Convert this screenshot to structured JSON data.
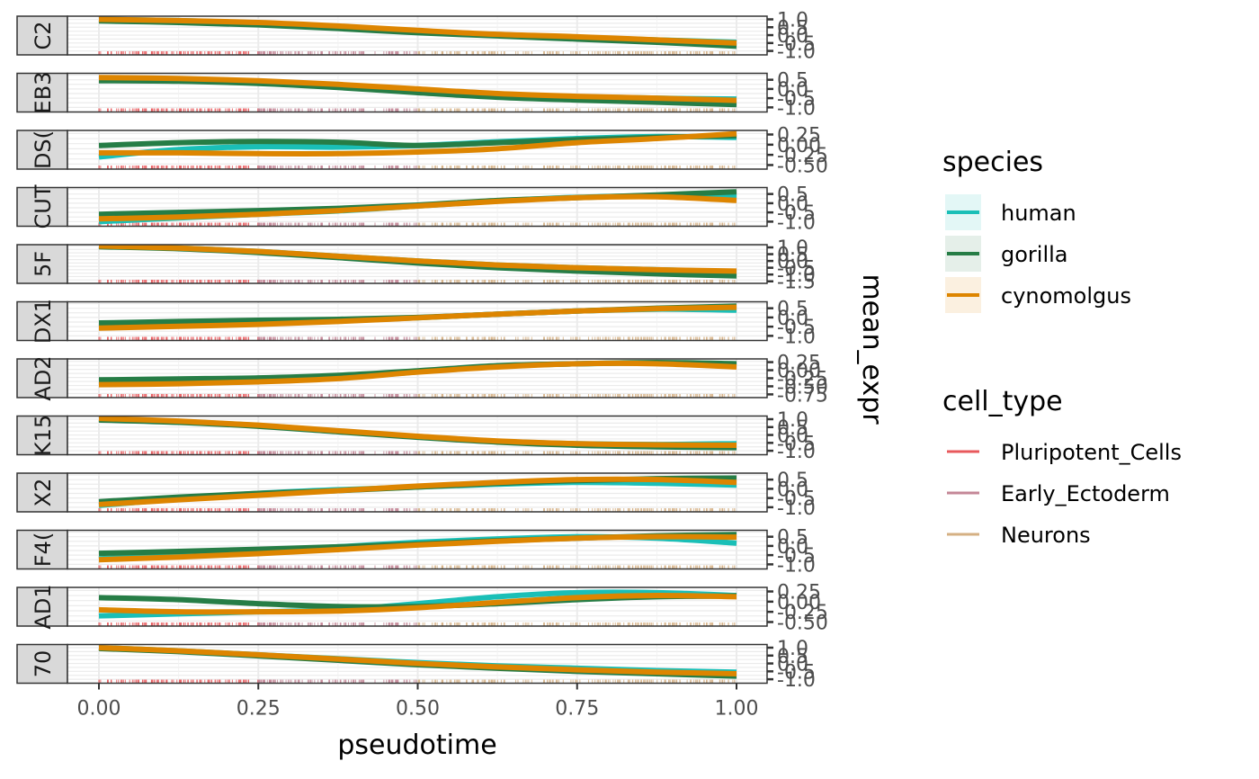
{
  "chart_data": {
    "type": "line",
    "title": "",
    "xlabel": "pseudotime",
    "ylabel": "mean_expr",
    "xlim": [
      -0.1,
      1.05
    ],
    "x_ticks": [
      0.0,
      0.25,
      0.5,
      0.75,
      1.0
    ],
    "x_tick_labels": [
      "0.00",
      "0.25",
      "0.50",
      "0.75",
      "1.00"
    ],
    "grid": true,
    "facet_direction": "rows",
    "species_colors": {
      "human": "#1abfb7",
      "gorilla": "#267d46",
      "cynomolgus": "#dd8500"
    },
    "cell_type_colors": {
      "Pluripotent_Cells": "#e8595c",
      "Early_Ectoderm": "#c48797",
      "Neurons": "#d5b083"
    },
    "x": [
      0.0,
      0.125,
      0.25,
      0.375,
      0.5,
      0.625,
      0.75,
      0.875,
      1.0
    ],
    "panels": [
      {
        "strip": "C2",
        "ylim": [
          -1.25,
          1.2
        ],
        "y_ticks": [
          1.0,
          0.5,
          0.0,
          -0.5,
          -1.0
        ],
        "y_tick_labels": [
          "1.0",
          "0.5",
          "0.0",
          "-0.5",
          "-1.0"
        ],
        "series": [
          {
            "name": "human",
            "values": [
              1.0,
              0.92,
              0.78,
              0.55,
              0.25,
              0.0,
              -0.15,
              -0.3,
              -0.45
            ]
          },
          {
            "name": "gorilla",
            "values": [
              0.9,
              0.8,
              0.65,
              0.42,
              0.15,
              -0.05,
              -0.25,
              -0.45,
              -0.7
            ]
          },
          {
            "name": "cynomolgus",
            "values": [
              1.0,
              0.92,
              0.8,
              0.58,
              0.3,
              0.05,
              -0.1,
              -0.3,
              -0.5
            ]
          }
        ]
      },
      {
        "strip": "EB3",
        "ylim": [
          -1.25,
          0.85
        ],
        "y_ticks": [
          0.5,
          0.0,
          -0.5,
          -1.0
        ],
        "y_tick_labels": [
          "0.5",
          "0.0",
          "-0.5",
          "-1.0"
        ],
        "series": [
          {
            "name": "human",
            "values": [
              0.6,
              0.55,
              0.42,
              0.2,
              -0.05,
              -0.3,
              -0.42,
              -0.5,
              -0.55
            ]
          },
          {
            "name": "gorilla",
            "values": [
              0.45,
              0.42,
              0.3,
              0.08,
              -0.2,
              -0.45,
              -0.6,
              -0.72,
              -0.85
            ]
          },
          {
            "name": "cynomolgus",
            "values": [
              0.62,
              0.57,
              0.45,
              0.25,
              0.0,
              -0.25,
              -0.4,
              -0.5,
              -0.62
            ]
          }
        ]
      },
      {
        "strip": "DS(",
        "ylim": [
          -0.6,
          0.35
        ],
        "y_ticks": [
          0.25,
          0.0,
          -0.25,
          -0.5
        ],
        "y_tick_labels": [
          "0.25",
          "0.00",
          "-0.25",
          "-0.50"
        ],
        "series": [
          {
            "name": "human",
            "values": [
              -0.3,
              -0.12,
              -0.05,
              -0.06,
              -0.02,
              0.07,
              0.15,
              0.2,
              0.18
            ]
          },
          {
            "name": "gorilla",
            "values": [
              -0.02,
              0.05,
              0.08,
              0.06,
              -0.02,
              0.05,
              0.12,
              0.18,
              0.22
            ]
          },
          {
            "name": "cynomolgus",
            "values": [
              -0.2,
              -0.2,
              -0.22,
              -0.22,
              -0.18,
              -0.1,
              0.05,
              0.15,
              0.27
            ]
          }
        ]
      },
      {
        "strip": "CUT",
        "ylim": [
          -1.25,
          0.85
        ],
        "y_ticks": [
          0.5,
          0.0,
          -0.5,
          -1.0
        ],
        "y_tick_labels": [
          "0.5",
          "0.0",
          "-0.5",
          "-1.0"
        ],
        "series": [
          {
            "name": "human",
            "values": [
              -1.0,
              -0.8,
              -0.6,
              -0.42,
              -0.15,
              0.12,
              0.32,
              0.4,
              0.35
            ]
          },
          {
            "name": "gorilla",
            "values": [
              -0.6,
              -0.5,
              -0.4,
              -0.28,
              -0.1,
              0.15,
              0.3,
              0.45,
              0.62
            ]
          },
          {
            "name": "cynomolgus",
            "values": [
              -0.85,
              -0.75,
              -0.6,
              -0.4,
              -0.15,
              0.1,
              0.3,
              0.35,
              0.15
            ]
          }
        ]
      },
      {
        "strip": "5F",
        "ylim": [
          -1.65,
          1.2
        ],
        "y_ticks": [
          1.0,
          0.5,
          0.0,
          -0.5,
          -1.0,
          -1.5
        ],
        "y_tick_labels": [
          "1.0",
          "0.5",
          "0.0",
          "-0.5",
          "-1.0",
          "-1.5"
        ],
        "series": [
          {
            "name": "human",
            "values": [
              1.1,
              0.95,
              0.7,
              0.35,
              0.0,
              -0.3,
              -0.5,
              -0.65,
              -0.8
            ]
          },
          {
            "name": "gorilla",
            "values": [
              1.05,
              0.9,
              0.62,
              0.25,
              -0.15,
              -0.5,
              -0.75,
              -0.95,
              -1.1
            ]
          },
          {
            "name": "cynomolgus",
            "values": [
              1.1,
              0.95,
              0.7,
              0.35,
              0.0,
              -0.3,
              -0.5,
              -0.65,
              -0.75
            ]
          }
        ]
      },
      {
        "strip": "DX1",
        "ylim": [
          -1.25,
          0.85
        ],
        "y_ticks": [
          0.5,
          0.0,
          -0.5,
          -1.0
        ],
        "y_tick_labels": [
          "0.5",
          "0.0",
          "-0.5",
          "-1.0"
        ],
        "series": [
          {
            "name": "human",
            "values": [
              -0.55,
              -0.45,
              -0.35,
              -0.2,
              -0.02,
              0.18,
              0.35,
              0.45,
              0.4
            ]
          },
          {
            "name": "gorilla",
            "values": [
              -0.3,
              -0.22,
              -0.15,
              -0.1,
              0.0,
              0.18,
              0.35,
              0.5,
              0.62
            ]
          },
          {
            "name": "cynomolgus",
            "values": [
              -0.58,
              -0.48,
              -0.38,
              -0.22,
              -0.02,
              0.18,
              0.35,
              0.48,
              0.55
            ]
          }
        ]
      },
      {
        "strip": "AD2",
        "ylim": [
          -0.85,
          0.35
        ],
        "y_ticks": [
          0.25,
          0.0,
          -0.25,
          -0.5,
          -0.75
        ],
        "y_tick_labels": [
          "0.25",
          "0.00",
          "-0.25",
          "-0.50",
          "-0.75"
        ],
        "series": [
          {
            "name": "human",
            "values": [
              -0.42,
              -0.4,
              -0.35,
              -0.25,
              -0.05,
              0.12,
              0.2,
              0.22,
              0.15
            ]
          },
          {
            "name": "gorilla",
            "values": [
              -0.3,
              -0.27,
              -0.24,
              -0.16,
              -0.02,
              0.14,
              0.2,
              0.24,
              0.2
            ]
          },
          {
            "name": "cynomolgus",
            "values": [
              -0.45,
              -0.42,
              -0.36,
              -0.26,
              -0.06,
              0.1,
              0.2,
              0.2,
              0.1
            ]
          }
        ]
      },
      {
        "strip": "K15",
        "ylim": [
          -1.25,
          1.2
        ],
        "y_ticks": [
          1.0,
          0.5,
          0.0,
          -0.5,
          -1.0
        ],
        "y_tick_labels": [
          "1.0",
          "0.5",
          "0.0",
          "-0.5",
          "-1.0"
        ],
        "series": [
          {
            "name": "human",
            "values": [
              1.0,
              0.85,
              0.6,
              0.25,
              -0.1,
              -0.4,
              -0.55,
              -0.6,
              -0.55
            ]
          },
          {
            "name": "gorilla",
            "values": [
              0.95,
              0.8,
              0.55,
              0.2,
              -0.15,
              -0.45,
              -0.65,
              -0.75,
              -0.8
            ]
          },
          {
            "name": "cynomolgus",
            "values": [
              1.05,
              0.88,
              0.62,
              0.27,
              -0.08,
              -0.38,
              -0.55,
              -0.62,
              -0.65
            ]
          }
        ]
      },
      {
        "strip": "X2",
        "ylim": [
          -1.25,
          0.85
        ],
        "y_ticks": [
          0.5,
          0.0,
          -0.5,
          -1.0
        ],
        "y_tick_labels": [
          "0.5",
          "0.0",
          "-0.5",
          "-1.0"
        ],
        "series": [
          {
            "name": "human",
            "values": [
              -0.9,
              -0.55,
              -0.25,
              -0.05,
              0.1,
              0.25,
              0.35,
              0.3,
              0.2
            ]
          },
          {
            "name": "gorilla",
            "values": [
              -0.7,
              -0.45,
              -0.25,
              -0.1,
              0.1,
              0.3,
              0.45,
              0.55,
              0.58
            ]
          },
          {
            "name": "cynomolgus",
            "values": [
              -0.85,
              -0.6,
              -0.35,
              -0.1,
              0.15,
              0.35,
              0.5,
              0.5,
              0.35
            ]
          }
        ]
      },
      {
        "strip": "F4(",
        "ylim": [
          -1.25,
          0.85
        ],
        "y_ticks": [
          0.5,
          0.0,
          -0.5,
          -1.0
        ],
        "y_tick_labels": [
          "0.5",
          "0.0",
          "-0.5",
          "-1.0"
        ],
        "series": [
          {
            "name": "human",
            "values": [
              -0.7,
              -0.5,
              -0.3,
              -0.05,
              0.2,
              0.38,
              0.5,
              0.42,
              0.15
            ]
          },
          {
            "name": "gorilla",
            "values": [
              -0.4,
              -0.3,
              -0.18,
              -0.05,
              0.1,
              0.28,
              0.42,
              0.55,
              0.62
            ]
          },
          {
            "name": "cynomolgus",
            "values": [
              -0.75,
              -0.6,
              -0.42,
              -0.2,
              0.05,
              0.25,
              0.42,
              0.5,
              0.48
            ]
          }
        ]
      },
      {
        "strip": "AD1",
        "ylim": [
          -0.6,
          0.35
        ],
        "y_ticks": [
          0.25,
          0.0,
          -0.25,
          -0.5
        ],
        "y_tick_labels": [
          "0.25",
          "0.00",
          "-0.25",
          "-0.50"
        ],
        "series": [
          {
            "name": "human",
            "values": [
              -0.35,
              -0.3,
              -0.25,
              -0.2,
              -0.05,
              0.12,
              0.22,
              0.22,
              0.15
            ]
          },
          {
            "name": "gorilla",
            "values": [
              0.1,
              0.05,
              -0.05,
              -0.12,
              -0.12,
              -0.05,
              0.05,
              0.12,
              0.14
            ]
          },
          {
            "name": "cynomolgus",
            "values": [
              -0.2,
              -0.25,
              -0.25,
              -0.23,
              -0.15,
              -0.02,
              0.1,
              0.15,
              0.12
            ]
          }
        ]
      },
      {
        "strip": "70",
        "ylim": [
          -1.25,
          1.2
        ],
        "y_ticks": [
          1.0,
          0.5,
          0.0,
          -0.5,
          -1.0
        ],
        "y_tick_labels": [
          "1.0",
          "0.5",
          "0.0",
          "-0.5",
          "-1.0"
        ],
        "series": [
          {
            "name": "human",
            "values": [
              1.0,
              0.8,
              0.55,
              0.3,
              0.05,
              -0.15,
              -0.3,
              -0.45,
              -0.55
            ]
          },
          {
            "name": "gorilla",
            "values": [
              0.95,
              0.75,
              0.48,
              0.2,
              -0.08,
              -0.3,
              -0.5,
              -0.65,
              -0.8
            ]
          },
          {
            "name": "cynomolgus",
            "values": [
              1.0,
              0.8,
              0.55,
              0.28,
              0.0,
              -0.22,
              -0.4,
              -0.55,
              -0.65
            ]
          }
        ]
      }
    ],
    "rug": {
      "Pluripotent_Cells": [
        0.0,
        0.25
      ],
      "Early_Ectoderm": [
        0.25,
        0.5
      ],
      "Neurons": [
        0.5,
        1.0
      ]
    },
    "legends": [
      {
        "title": "species",
        "placement": "right",
        "entries": [
          {
            "label": "human",
            "key": "human"
          },
          {
            "label": "gorilla",
            "key": "gorilla"
          },
          {
            "label": "cynomolgus",
            "key": "cynomolgus"
          }
        ]
      },
      {
        "title": "cell_type",
        "placement": "right",
        "entries": [
          {
            "label": "Pluripotent_Cells",
            "key": "Pluripotent_Cells"
          },
          {
            "label": "Early_Ectoderm",
            "key": "Early_Ectoderm"
          },
          {
            "label": "Neurons",
            "key": "Neurons"
          }
        ]
      }
    ]
  }
}
